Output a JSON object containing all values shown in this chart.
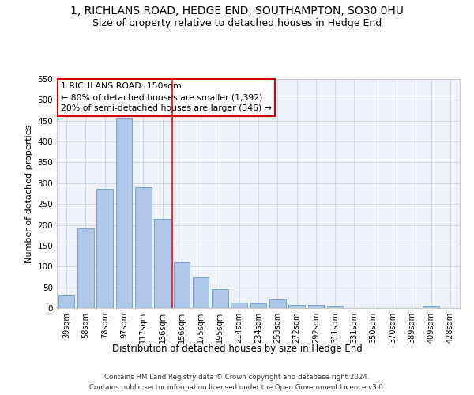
{
  "title": "1, RICHLANS ROAD, HEDGE END, SOUTHAMPTON, SO30 0HU",
  "subtitle": "Size of property relative to detached houses in Hedge End",
  "xlabel": "Distribution of detached houses by size in Hedge End",
  "ylabel": "Number of detached properties",
  "categories": [
    "39sqm",
    "58sqm",
    "78sqm",
    "97sqm",
    "117sqm",
    "136sqm",
    "156sqm",
    "175sqm",
    "195sqm",
    "214sqm",
    "234sqm",
    "253sqm",
    "272sqm",
    "292sqm",
    "311sqm",
    "331sqm",
    "350sqm",
    "370sqm",
    "389sqm",
    "409sqm",
    "428sqm"
  ],
  "values": [
    30,
    192,
    287,
    458,
    291,
    214,
    110,
    74,
    46,
    13,
    11,
    20,
    8,
    7,
    5,
    0,
    0,
    0,
    0,
    5,
    0
  ],
  "bar_color": "#aec6e8",
  "bar_edge_color": "#5a8fc2",
  "red_line_x": 5.5,
  "annotation_line1": "1 RICHLANS ROAD: 150sqm",
  "annotation_line2": "← 80% of detached houses are smaller (1,392)",
  "annotation_line3": "20% of semi-detached houses are larger (346) →",
  "annotation_box_color": "#ffffff",
  "annotation_box_edge_color": "#cc0000",
  "ylim": [
    0,
    550
  ],
  "yticks": [
    0,
    50,
    100,
    150,
    200,
    250,
    300,
    350,
    400,
    450,
    500,
    550
  ],
  "grid_color": "#d0d8e8",
  "background_color": "#eef2f8",
  "footer_line1": "Contains HM Land Registry data © Crown copyright and database right 2024.",
  "footer_line2": "Contains public sector information licensed under the Open Government Licence v3.0.",
  "title_fontsize": 10,
  "subtitle_fontsize": 9,
  "xlabel_fontsize": 8.5,
  "ylabel_fontsize": 8,
  "annotation_fontsize": 7.8,
  "footer_fontsize": 6.2
}
